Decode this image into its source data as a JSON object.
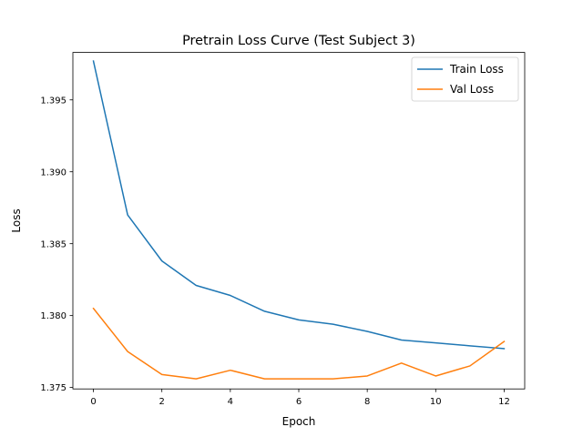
{
  "chart_data": {
    "type": "line",
    "title": "Pretrain Loss Curve (Test Subject 3)",
    "xlabel": "Epoch",
    "ylabel": "Loss",
    "xlim": [
      -0.6,
      12.6
    ],
    "ylim": [
      1.3749,
      1.3983
    ],
    "xticks": [
      0,
      2,
      4,
      6,
      8,
      10,
      12
    ],
    "xtick_labels": [
      "0",
      "2",
      "4",
      "6",
      "8",
      "10",
      "12"
    ],
    "yticks": [
      1.375,
      1.38,
      1.385,
      1.39,
      1.395
    ],
    "ytick_labels": [
      "1.375",
      "1.380",
      "1.385",
      "1.390",
      "1.395"
    ],
    "grid": false,
    "legend_position": "upper right",
    "x": [
      0,
      1,
      2,
      3,
      4,
      5,
      6,
      7,
      8,
      9,
      10,
      11,
      12
    ],
    "series": [
      {
        "name": "Train Loss",
        "color": "#1f77b4",
        "values": [
          1.3977,
          1.387,
          1.3838,
          1.3821,
          1.3814,
          1.3803,
          1.3797,
          1.3794,
          1.3789,
          1.3783,
          1.3781,
          1.3779,
          1.3777
        ]
      },
      {
        "name": "Val Loss",
        "color": "#ff7f0e",
        "values": [
          1.3805,
          1.3775,
          1.3759,
          1.3756,
          1.3762,
          1.3756,
          1.3756,
          1.3756,
          1.3758,
          1.3767,
          1.3758,
          1.3765,
          1.3782
        ]
      }
    ]
  }
}
